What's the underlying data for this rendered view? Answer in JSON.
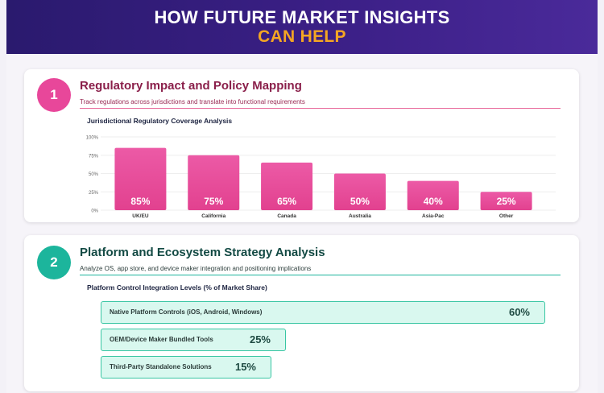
{
  "header": {
    "line1": "HOW FUTURE MARKET INSIGHTS",
    "line2": "CAN HELP"
  },
  "sections": [
    {
      "number": "1",
      "title": "Regulatory Impact and Policy Mapping",
      "subtitle": "Track regulations across jurisdictions and translate into functional requirements",
      "chart_title": "Jurisdictional Regulatory Coverage Analysis"
    },
    {
      "number": "2",
      "title": "Platform and Ecosystem Strategy Analysis",
      "subtitle": "Analyze OS, app store, and device maker integration and positioning implications",
      "chart_title": "Platform Control Integration Levels (% of Market Share)"
    }
  ],
  "colors": {
    "pink_top": "#ec5aa6",
    "pink_bottom": "#e2418f",
    "teal_fill": "#d9f8ef",
    "teal_border": "#39c6a3"
  },
  "chart_data": [
    {
      "type": "bar",
      "title": "Jurisdictional Regulatory Coverage Analysis",
      "categories": [
        "UK/EU",
        "California",
        "Canada",
        "Australia",
        "Asia-Pac",
        "Other"
      ],
      "values": [
        85,
        75,
        65,
        50,
        40,
        25
      ],
      "value_labels": [
        "85%",
        "75%",
        "65%",
        "50%",
        "40%",
        "25%"
      ],
      "yticks": [
        "0%",
        "25%",
        "50%",
        "75%",
        "100%"
      ],
      "ylim": [
        0,
        100
      ],
      "grid": true
    },
    {
      "type": "bar",
      "orientation": "horizontal",
      "title": "Platform Control Integration Levels (% of Market Share)",
      "categories": [
        "Native Platform Controls (iOS, Android, Windows)",
        "OEM/Device Maker Bundled Tools",
        "Third-Party Standalone Solutions"
      ],
      "values": [
        60,
        25,
        15
      ],
      "value_labels": [
        "60%",
        "25%",
        "15%"
      ],
      "xlim": [
        0,
        60
      ]
    }
  ]
}
